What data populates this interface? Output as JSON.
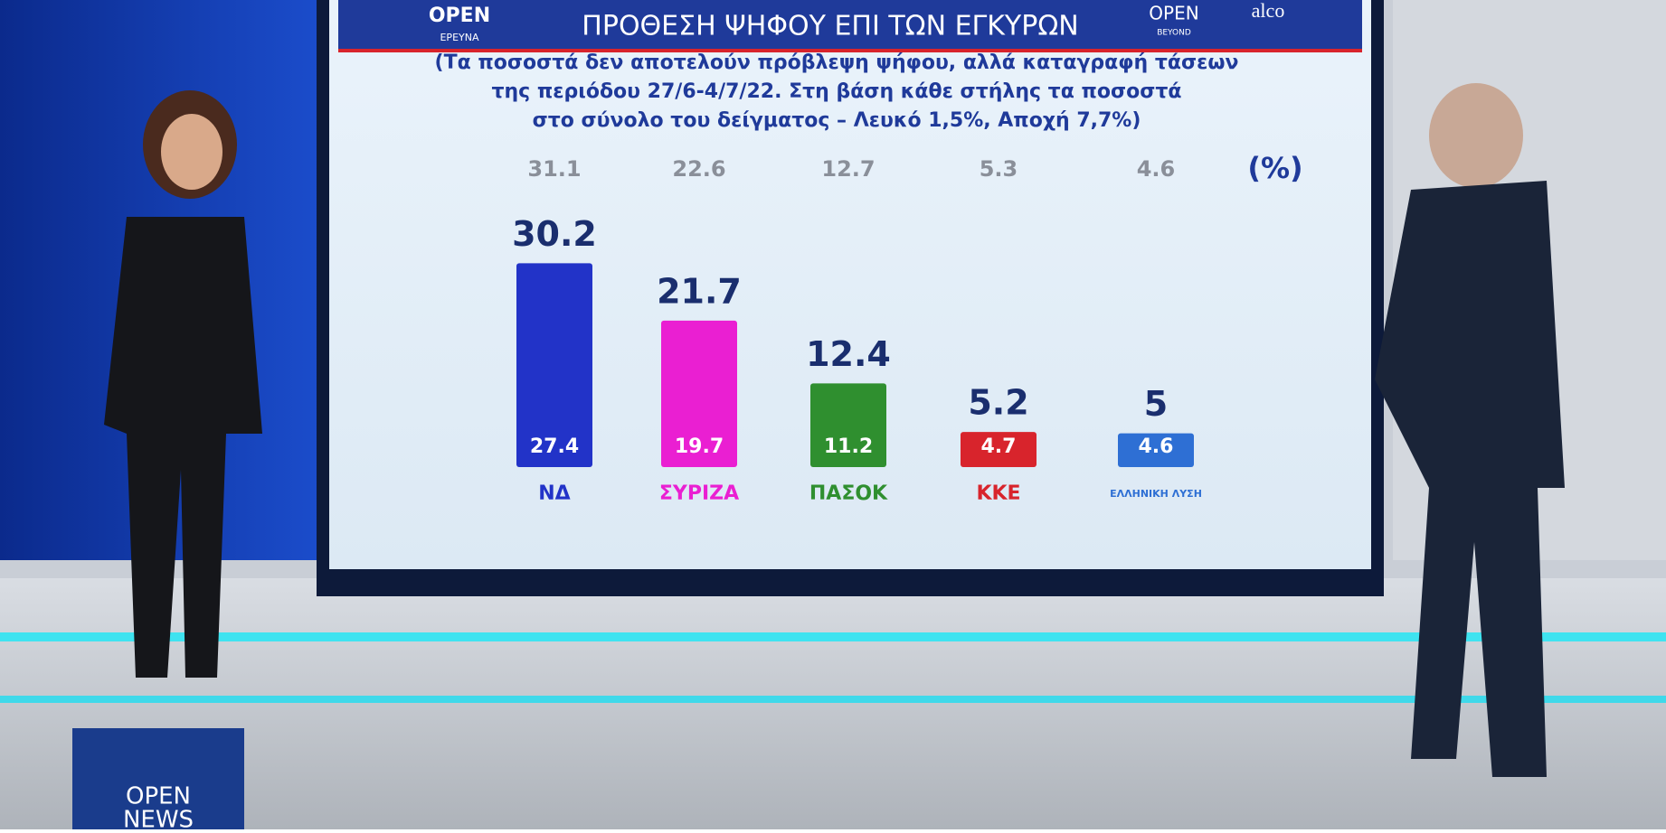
{
  "chart_data": {
    "type": "bar",
    "title": "ΠΡΟΘΕΣΗ ΨΗΦΟΥ ΕΠΙ ΤΩΝ ΕΓΚΥΡΩΝ",
    "subtitle": [
      "(Τα ποσοστά δεν αποτελούν πρόβλεψη ψήφου, αλλά καταγραφή τάσεων",
      "της περιόδου 27/6-4/7/22. Στη βάση κάθε στήλης τα ποσοστά",
      "στο σύνολο του δείγματος – Λευκό 1,5%, Αποχή 7,7%)"
    ],
    "categories": [
      "ΝΔ",
      "ΣΥΡΙΖΑ",
      "ΠΑΣΟΚ",
      "ΚΚΕ",
      "ΕΛΛΗΝΙΚΗ ΛΥΣΗ"
    ],
    "values": [
      30.2,
      21.7,
      12.4,
      5.2,
      5
    ],
    "sample_values": [
      27.4,
      19.7,
      11.2,
      4.7,
      4.6
    ],
    "previous_values": [
      31.1,
      22.6,
      12.7,
      5.3,
      4.6
    ],
    "unit_label": "(%)",
    "colors": [
      "#2233c8",
      "#ea1fd2",
      "#2f8f2f",
      "#d8242c",
      "#2e6fd4"
    ]
  },
  "branding": {
    "survey_logo": [
      "OPEN",
      "ΕΡΕΥΝΑ"
    ],
    "beyond_logo": [
      "OPEN",
      "BEYOND"
    ],
    "pollster": "alco",
    "channel_logo": [
      "OPEN",
      "NEWS"
    ]
  }
}
